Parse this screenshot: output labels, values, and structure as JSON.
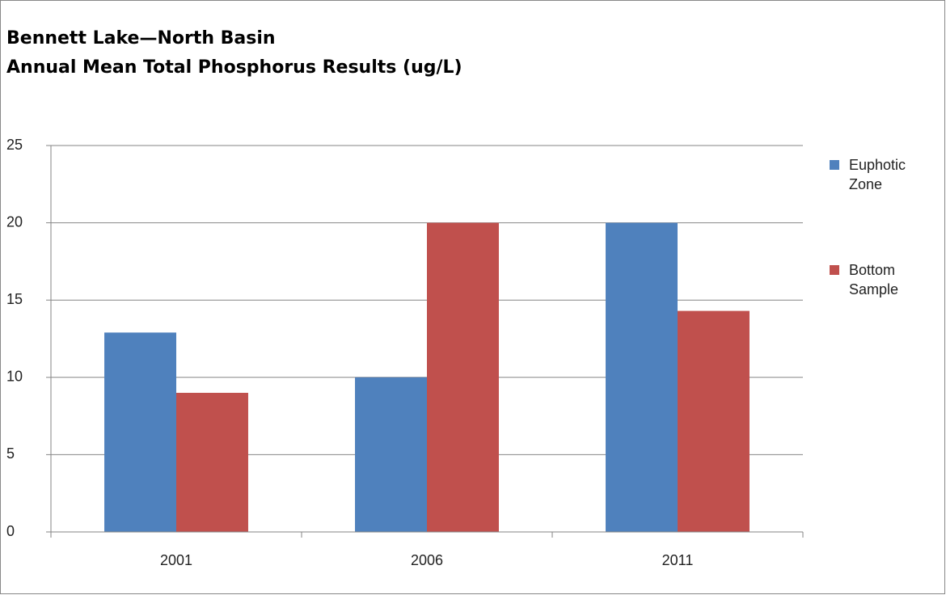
{
  "chart_data": {
    "type": "bar",
    "title": "Bennett Lake—North Basin",
    "subtitle": "Annual Mean Total Phosphorus Results (ug/L)",
    "categories": [
      "2001",
      "2006",
      "2011"
    ],
    "series": [
      {
        "name": "Euphotic Zone",
        "color": "#4f81bd",
        "values": [
          12.9,
          10.0,
          20.0
        ]
      },
      {
        "name": "Bottom Sample",
        "color": "#c0504d",
        "values": [
          9.0,
          20.0,
          14.3
        ]
      }
    ],
    "ylim": [
      0,
      25
    ],
    "yticks": [
      0,
      5,
      10,
      15,
      20,
      25
    ],
    "grid": true,
    "legend": "right"
  }
}
